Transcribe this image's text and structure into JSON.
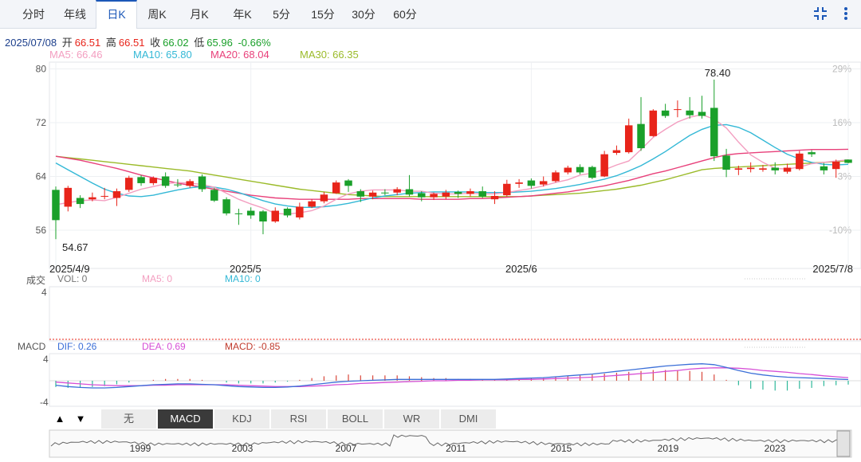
{
  "tabs": [
    {
      "label": "分时",
      "active": false
    },
    {
      "label": "年线",
      "active": false
    },
    {
      "label": "日K",
      "active": true
    },
    {
      "label": "周K",
      "active": false
    },
    {
      "label": "月K",
      "active": false
    },
    {
      "label": "年K",
      "active": false
    },
    {
      "label": "5分",
      "active": false
    },
    {
      "label": "15分",
      "active": false
    },
    {
      "label": "30分",
      "active": false
    },
    {
      "label": "60分",
      "active": false
    }
  ],
  "toolbar_icons": [
    "collapse-icon",
    "more-vertical-icon"
  ],
  "quote": {
    "date": "2025/07/08",
    "open_label": "开",
    "open": "66.51",
    "high_label": "高",
    "high": "66.51",
    "close_label": "收",
    "close": "66.02",
    "low_label": "低",
    "low": "65.96",
    "change": "-0.66%"
  },
  "ma_legend": [
    {
      "label": "MA5: 66.46",
      "color": "#f39ec0"
    },
    {
      "label": "MA10: 65.80",
      "color": "#33b8d6"
    },
    {
      "label": "MA20: 68.04",
      "color": "#e8407a"
    },
    {
      "label": "MA30: 66.35",
      "color": "#9bbb2a"
    }
  ],
  "volume_legend": {
    "title": "成交",
    "vol": "VOL: 0",
    "ma5": "MA5: 0",
    "ma10": "MA10: 0",
    "y_max": "4"
  },
  "macd_legend": {
    "title": "MACD",
    "dif": "DIF: 0.26",
    "dea": "DEA: 0.69",
    "macd": "MACD: -0.85",
    "y_ticks": [
      "4",
      "-4"
    ]
  },
  "indicators": [
    {
      "label": "无",
      "active": false
    },
    {
      "label": "MACD",
      "active": true
    },
    {
      "label": "KDJ",
      "active": false
    },
    {
      "label": "RSI",
      "active": false
    },
    {
      "label": "BOLL",
      "active": false
    },
    {
      "label": "WR",
      "active": false
    },
    {
      "label": "DMI",
      "active": false
    }
  ],
  "nav_arrows": [
    "▲",
    "▼"
  ],
  "overview_years": [
    "1999",
    "2003",
    "2007",
    "2011",
    "2015",
    "2019",
    "2023"
  ],
  "colors": {
    "up": "#e8241a",
    "down": "#1aa02a",
    "accent": "#1c58b8"
  },
  "chart_data": {
    "type": "candlestick",
    "y_ticks": [
      80,
      72,
      64,
      56
    ],
    "ylim": [
      51.5,
      81
    ],
    "pct_ticks": [
      "29%",
      "16%",
      "3%",
      "-10%"
    ],
    "x_labels": [
      "2025/4/9",
      "2025/5",
      "2025/6",
      "2025/7/8"
    ],
    "max_label": "78.40",
    "min_label": "54.67",
    "candles": [
      {
        "d": "2025/4/9",
        "o": 62.0,
        "c": 57.5,
        "h": 62.5,
        "l": 54.67
      },
      {
        "o": 59.5,
        "c": 62.3,
        "h": 62.6,
        "l": 58.8
      },
      {
        "o": 60.8,
        "c": 59.9,
        "h": 61.2,
        "l": 59.3
      },
      {
        "o": 60.6,
        "c": 60.9,
        "h": 61.6,
        "l": 60.3
      },
      {
        "o": 61.0,
        "c": 61.1,
        "h": 62.3,
        "l": 60.6
      },
      {
        "o": 60.8,
        "c": 61.8,
        "h": 62.2,
        "l": 59.6
      },
      {
        "o": 62.0,
        "c": 63.8,
        "h": 64.1,
        "l": 61.7
      },
      {
        "o": 63.9,
        "c": 63.0,
        "h": 64.2,
        "l": 62.6
      },
      {
        "o": 63.0,
        "c": 63.8,
        "h": 64.0,
        "l": 62.7
      },
      {
        "o": 64.0,
        "c": 62.6,
        "h": 64.6,
        "l": 62.3
      },
      {
        "o": 62.8,
        "c": 62.7,
        "h": 63.6,
        "l": 62.4
      },
      {
        "o": 62.6,
        "c": 63.3,
        "h": 63.6,
        "l": 62.3
      },
      {
        "o": 64.0,
        "c": 62.1,
        "h": 64.3,
        "l": 61.7
      },
      {
        "o": 62.0,
        "c": 60.4,
        "h": 62.3,
        "l": 60.2
      },
      {
        "o": 60.6,
        "c": 58.5,
        "h": 60.9,
        "l": 58.2
      },
      {
        "o": 58.5,
        "c": 58.4,
        "h": 59.2,
        "l": 56.8
      },
      {
        "o": 58.9,
        "c": 58.2,
        "h": 59.4,
        "l": 57.7
      },
      {
        "o": 58.8,
        "c": 57.3,
        "h": 59.0,
        "l": 55.4
      },
      {
        "o": 57.3,
        "c": 58.9,
        "h": 59.4,
        "l": 57.1
      },
      {
        "o": 59.2,
        "c": 58.2,
        "h": 59.4,
        "l": 57.9
      },
      {
        "o": 57.9,
        "c": 59.5,
        "h": 60.1,
        "l": 57.6
      },
      {
        "o": 59.5,
        "c": 60.3,
        "h": 60.6,
        "l": 59.3
      },
      {
        "o": 60.3,
        "c": 61.3,
        "h": 61.7,
        "l": 60.0
      },
      {
        "o": 61.5,
        "c": 63.1,
        "h": 63.4,
        "l": 61.4
      },
      {
        "o": 63.4,
        "c": 62.6,
        "h": 63.6,
        "l": 61.7
      },
      {
        "o": 61.8,
        "c": 61.0,
        "h": 62.1,
        "l": 60.2
      },
      {
        "o": 61.0,
        "c": 61.6,
        "h": 61.9,
        "l": 60.6
      },
      {
        "o": 61.6,
        "c": 61.5,
        "h": 62.1,
        "l": 61.2
      },
      {
        "o": 61.6,
        "c": 62.1,
        "h": 62.4,
        "l": 61.2
      },
      {
        "o": 62.1,
        "c": 61.3,
        "h": 64.2,
        "l": 61.0
      },
      {
        "o": 61.5,
        "c": 60.9,
        "h": 61.8,
        "l": 60.3
      },
      {
        "o": 60.9,
        "c": 61.4,
        "h": 61.6,
        "l": 60.5
      },
      {
        "o": 61.0,
        "c": 61.6,
        "h": 62.0,
        "l": 60.6
      },
      {
        "o": 61.7,
        "c": 61.4,
        "h": 61.9,
        "l": 60.8
      },
      {
        "o": 61.4,
        "c": 61.8,
        "h": 62.2,
        "l": 61.0
      },
      {
        "o": 61.8,
        "c": 61.0,
        "h": 62.5,
        "l": 60.8
      },
      {
        "o": 60.6,
        "c": 61.1,
        "h": 61.8,
        "l": 59.9
      },
      {
        "o": 61.2,
        "c": 62.9,
        "h": 63.5,
        "l": 61.0
      },
      {
        "o": 62.9,
        "c": 63.1,
        "h": 63.6,
        "l": 62.3
      },
      {
        "o": 63.4,
        "c": 62.6,
        "h": 63.7,
        "l": 62.2
      },
      {
        "o": 62.8,
        "c": 63.3,
        "h": 64.0,
        "l": 62.5
      },
      {
        "o": 63.3,
        "c": 64.6,
        "h": 64.9,
        "l": 63.1
      },
      {
        "o": 64.6,
        "c": 65.3,
        "h": 65.6,
        "l": 64.3
      },
      {
        "o": 65.4,
        "c": 64.6,
        "h": 65.8,
        "l": 64.3
      },
      {
        "o": 65.4,
        "c": 63.8,
        "h": 65.6,
        "l": 63.6
      },
      {
        "o": 64.0,
        "c": 67.3,
        "h": 67.8,
        "l": 63.9
      },
      {
        "o": 67.5,
        "c": 67.9,
        "h": 68.6,
        "l": 67.2
      },
      {
        "o": 67.6,
        "c": 71.6,
        "h": 72.6,
        "l": 67.4
      },
      {
        "o": 71.8,
        "c": 68.2,
        "h": 75.8,
        "l": 67.8
      },
      {
        "o": 70.0,
        "c": 73.8,
        "h": 74.0,
        "l": 69.9
      },
      {
        "o": 73.8,
        "c": 73.0,
        "h": 74.8,
        "l": 72.7
      },
      {
        "o": 74.0,
        "c": 74.0,
        "h": 75.3,
        "l": 72.8
      },
      {
        "o": 73.8,
        "c": 73.1,
        "h": 75.8,
        "l": 72.6
      },
      {
        "o": 73.6,
        "c": 73.0,
        "h": 76.0,
        "l": 72.6
      },
      {
        "o": 74.2,
        "c": 67.0,
        "h": 78.4,
        "l": 66.3
      },
      {
        "o": 67.1,
        "c": 65.0,
        "h": 68.1,
        "l": 63.9
      },
      {
        "o": 65.0,
        "c": 65.2,
        "h": 65.6,
        "l": 64.2
      },
      {
        "o": 65.1,
        "c": 65.3,
        "h": 66.1,
        "l": 64.6
      },
      {
        "o": 65.0,
        "c": 65.2,
        "h": 65.7,
        "l": 64.7
      },
      {
        "o": 65.3,
        "c": 64.9,
        "h": 66.1,
        "l": 64.3
      },
      {
        "o": 64.7,
        "c": 65.3,
        "h": 65.9,
        "l": 64.4
      },
      {
        "o": 65.1,
        "c": 67.4,
        "h": 67.8,
        "l": 64.9
      },
      {
        "o": 67.6,
        "c": 67.3,
        "h": 67.9,
        "l": 66.9
      },
      {
        "o": 65.5,
        "c": 64.9,
        "h": 66.0,
        "l": 64.3
      },
      {
        "o": 65.1,
        "c": 66.2,
        "h": 66.5,
        "l": 63.8
      },
      {
        "d": "2025/7/8",
        "o": 66.51,
        "c": 66.02,
        "h": 66.51,
        "l": 65.96
      }
    ],
    "ma5": [
      59.8,
      60.1,
      60.4,
      60.5,
      60.4,
      60.9,
      61.5,
      62.1,
      62.5,
      62.9,
      63.1,
      63.0,
      62.8,
      62.4,
      61.5,
      60.6,
      59.9,
      59.3,
      58.5,
      58.4,
      58.6,
      58.9,
      59.6,
      60.6,
      61.4,
      61.8,
      62.0,
      62.0,
      62.0,
      61.8,
      61.8,
      61.5,
      61.4,
      61.4,
      61.5,
      61.4,
      61.4,
      61.6,
      61.9,
      62.2,
      62.6,
      63.1,
      63.5,
      64.2,
      64.5,
      65.0,
      65.7,
      66.3,
      68.0,
      69.8,
      71.0,
      72.1,
      72.8,
      73.2,
      72.5,
      71.2,
      69.1,
      67.2,
      66.1,
      65.2,
      65.1,
      65.4,
      65.9,
      66.1,
      66.3,
      66.46
    ],
    "ma10": [
      66.0,
      65.0,
      64.0,
      63.0,
      62.1,
      61.5,
      61.1,
      61.0,
      61.2,
      61.6,
      62.0,
      62.3,
      62.5,
      62.4,
      62.1,
      61.6,
      61.0,
      60.4,
      59.9,
      59.6,
      59.4,
      59.4,
      59.5,
      59.7,
      60.0,
      60.4,
      60.8,
      61.1,
      61.3,
      61.5,
      61.6,
      61.7,
      61.7,
      61.7,
      61.7,
      61.6,
      61.6,
      61.6,
      61.7,
      61.8,
      62.0,
      62.2,
      62.5,
      62.8,
      63.2,
      63.6,
      64.1,
      64.8,
      65.6,
      66.6,
      67.7,
      68.9,
      70.1,
      71.0,
      71.6,
      71.7,
      71.3,
      70.5,
      69.4,
      68.3,
      67.3,
      66.6,
      66.1,
      65.8,
      65.7,
      65.8
    ],
    "ma20": [
      67.0,
      66.7,
      66.4,
      66.0,
      65.6,
      65.2,
      64.7,
      64.2,
      63.8,
      63.4,
      63.0,
      62.7,
      62.4,
      62.1,
      61.8,
      61.5,
      61.2,
      61.0,
      60.8,
      60.7,
      60.6,
      60.6,
      60.6,
      60.6,
      60.6,
      60.7,
      60.7,
      60.7,
      60.7,
      60.7,
      60.6,
      60.6,
      60.6,
      60.6,
      60.7,
      60.7,
      60.8,
      60.9,
      61.0,
      61.1,
      61.3,
      61.5,
      61.7,
      62.0,
      62.3,
      62.6,
      63.0,
      63.4,
      63.9,
      64.4,
      64.8,
      65.3,
      65.8,
      66.3,
      66.8,
      67.2,
      67.4,
      67.5,
      67.6,
      67.7,
      67.8,
      67.9,
      68.0,
      68.0,
      68.0,
      68.04
    ],
    "ma30": [
      67.0,
      66.8,
      66.6,
      66.4,
      66.2,
      66.0,
      65.8,
      65.6,
      65.4,
      65.2,
      65.0,
      64.8,
      64.5,
      64.2,
      63.9,
      63.6,
      63.3,
      63.0,
      62.7,
      62.4,
      62.1,
      61.9,
      61.7,
      61.5,
      61.3,
      61.2,
      61.1,
      61.0,
      61.0,
      61.0,
      61.0,
      61.0,
      61.0,
      61.0,
      61.0,
      61.0,
      61.0,
      61.0,
      61.0,
      61.1,
      61.2,
      61.3,
      61.4,
      61.5,
      61.7,
      61.9,
      62.1,
      62.4,
      62.7,
      63.1,
      63.5,
      64.0,
      64.5,
      65.0,
      65.2,
      65.3,
      65.4,
      65.5,
      65.6,
      65.7,
      65.8,
      65.9,
      66.0,
      66.1,
      66.2,
      66.35
    ],
    "macd": {
      "ylim": [
        -5,
        5
      ],
      "dif": [
        -1.0,
        -1.3,
        -1.5,
        -1.6,
        -1.6,
        -1.5,
        -1.3,
        -1.1,
        -0.9,
        -0.8,
        -0.7,
        -0.7,
        -0.8,
        -0.9,
        -1.1,
        -1.3,
        -1.4,
        -1.5,
        -1.5,
        -1.4,
        -1.2,
        -0.9,
        -0.6,
        -0.3,
        -0.1,
        0.0,
        0.1,
        0.2,
        0.3,
        0.3,
        0.3,
        0.3,
        0.3,
        0.3,
        0.3,
        0.3,
        0.3,
        0.4,
        0.5,
        0.6,
        0.7,
        0.9,
        1.1,
        1.3,
        1.5,
        1.8,
        2.1,
        2.4,
        2.7,
        3.0,
        3.3,
        3.5,
        3.7,
        3.8,
        3.6,
        3.0,
        2.3,
        1.7,
        1.3,
        1.0,
        0.8,
        0.7,
        0.6,
        0.5,
        0.4,
        0.26
      ],
      "dea": [
        -0.3,
        -0.5,
        -0.7,
        -0.9,
        -1.0,
        -1.1,
        -1.1,
        -1.1,
        -1.0,
        -1.0,
        -0.9,
        -0.9,
        -0.9,
        -0.9,
        -0.9,
        -1.0,
        -1.1,
        -1.2,
        -1.3,
        -1.3,
        -1.3,
        -1.2,
        -1.1,
        -0.9,
        -0.8,
        -0.6,
        -0.5,
        -0.4,
        -0.3,
        -0.2,
        -0.1,
        0.0,
        0.0,
        0.1,
        0.1,
        0.2,
        0.2,
        0.2,
        0.3,
        0.3,
        0.4,
        0.5,
        0.6,
        0.7,
        0.8,
        1.0,
        1.2,
        1.4,
        1.6,
        1.8,
        2.1,
        2.3,
        2.6,
        2.8,
        2.9,
        2.9,
        2.8,
        2.6,
        2.3,
        2.1,
        1.9,
        1.6,
        1.4,
        1.1,
        0.9,
        0.69
      ]
    },
    "overview": {
      "x_labels": [
        "1999",
        "2003",
        "2007",
        "2011",
        "2015",
        "2019",
        "2023"
      ]
    }
  }
}
